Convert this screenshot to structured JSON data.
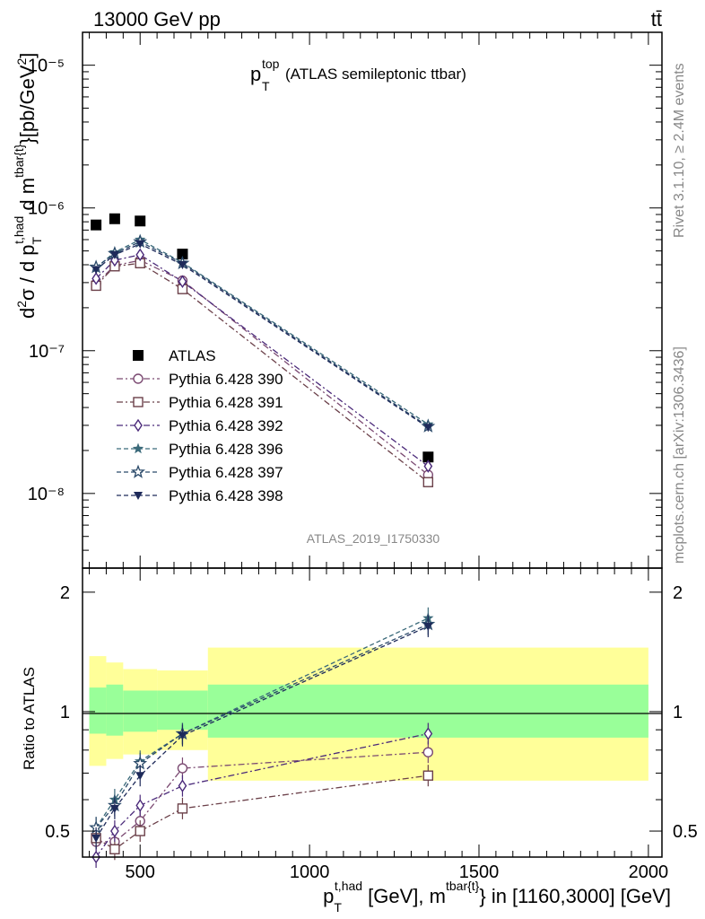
{
  "header": {
    "left": "13000 GeV pp",
    "right": "tt̄"
  },
  "side_text": {
    "rivet": "Rivet 3.1.10, ≥ 2.4M events",
    "mcplots": "mcplots.cern.ch [arXiv:1306.3436]"
  },
  "watermark": "ATLAS_2019_I1750330",
  "chart_data": [
    {
      "type": "scatter",
      "panel": "main",
      "title": {
        "main": "p",
        "sub": "T",
        "sup": "top",
        "rest": " (ATLAS semileptonic ttbar)"
      },
      "ylabel": "d²σ / d p_T^{t,had} d m^{tbar{t}}[pb/GeV²]",
      "yscale": "log",
      "ylim": [
        3e-09,
        1.7e-05
      ],
      "xlim": [
        330,
        2040
      ],
      "x": [
        370,
        425,
        500,
        625,
        1350
      ],
      "yticks": [
        "10⁻⁸",
        "10⁻⁷",
        "10⁻⁶",
        "10⁻⁵"
      ],
      "legend_position": "middle-left",
      "series": [
        {
          "name": "ATLAS",
          "color": "#000000",
          "marker": "square-filled",
          "line": "none",
          "values": [
            7.6e-07,
            8.4e-07,
            8.1e-07,
            4.75e-07,
            1.8e-08
          ]
        },
        {
          "name": "Pythia 6.428 390",
          "color": "#7b4a72",
          "marker": "circle-open",
          "line": "dashdot",
          "values": [
            2.95e-07,
            3.95e-07,
            4.3e-07,
            3.1e-07,
            1.35e-08
          ]
        },
        {
          "name": "Pythia 6.428 391",
          "color": "#6b4049",
          "marker": "square-open",
          "line": "dashdot",
          "values": [
            2.85e-07,
            3.9e-07,
            4.1e-07,
            2.7e-07,
            1.2e-08
          ]
        },
        {
          "name": "Pythia 6.428 392",
          "color": "#4b2a7a",
          "marker": "diamond-open",
          "line": "dashdot",
          "values": [
            3.2e-07,
            4.3e-07,
            4.7e-07,
            3.05e-07,
            1.55e-08
          ]
        },
        {
          "name": "Pythia 6.428 396",
          "color": "#3b6a7a",
          "marker": "star-filled",
          "line": "dashed",
          "values": [
            3.8e-07,
            4.9e-07,
            6e-07,
            4.15e-07,
            3.05e-08
          ]
        },
        {
          "name": "Pythia 6.428 397",
          "color": "#2b4a6a",
          "marker": "star-open",
          "line": "dashed",
          "values": [
            3.85e-07,
            4.8e-07,
            5.8e-07,
            4.1e-07,
            2.95e-08
          ]
        },
        {
          "name": "Pythia 6.428 398",
          "color": "#1e2a5a",
          "marker": "triangle-down-filled",
          "line": "dashed",
          "values": [
            3.7e-07,
            4.7e-07,
            5.6e-07,
            4e-07,
            2.9e-08
          ]
        }
      ]
    },
    {
      "type": "scatter",
      "panel": "ratio",
      "ylabel": "Ratio to ATLAS",
      "xlabel": "p_T^{t,had} [GeV], m^{tbar{t}} in [1160,3000] [GeV]",
      "yscale": "log",
      "ylim": [
        0.43,
        2.3
      ],
      "xlim": [
        330,
        2040
      ],
      "xticks": [
        "500",
        "1000",
        "1500",
        "2000"
      ],
      "xtick_values": [
        500,
        1000,
        1500,
        2000
      ],
      "yticks": [
        "0.5",
        "1",
        "2"
      ],
      "ytick_values": [
        0.5,
        1,
        2
      ],
      "x": [
        370,
        425,
        500,
        625,
        1350
      ],
      "bands": {
        "edges": [
          350,
          400,
          450,
          550,
          700,
          2000
        ],
        "stat_color": "#99ff99",
        "total_color": "#ffff99",
        "stat_lo": [
          0.88,
          0.87,
          0.89,
          0.9,
          0.86
        ],
        "stat_hi": [
          1.15,
          1.17,
          1.13,
          1.13,
          1.17
        ],
        "total_lo": [
          0.73,
          0.76,
          0.78,
          0.8,
          0.67
        ],
        "total_hi": [
          1.38,
          1.33,
          1.28,
          1.27,
          1.45
        ]
      },
      "series": [
        {
          "name": "Pythia 6.428 390",
          "values": [
            0.47,
            0.47,
            0.53,
            0.72,
            0.79
          ]
        },
        {
          "name": "Pythia 6.428 391",
          "values": [
            0.48,
            0.45,
            0.5,
            0.57,
            0.69
          ]
        },
        {
          "name": "Pythia 6.428 392",
          "values": [
            0.43,
            0.5,
            0.58,
            0.65,
            0.88
          ]
        },
        {
          "name": "Pythia 6.428 396",
          "values": [
            0.51,
            0.6,
            0.75,
            0.88,
            1.72
          ]
        },
        {
          "name": "Pythia 6.428 397",
          "values": [
            0.51,
            0.58,
            0.74,
            0.88,
            1.66
          ]
        },
        {
          "name": "Pythia 6.428 398",
          "values": [
            0.48,
            0.57,
            0.69,
            0.87,
            1.64
          ]
        }
      ]
    }
  ]
}
